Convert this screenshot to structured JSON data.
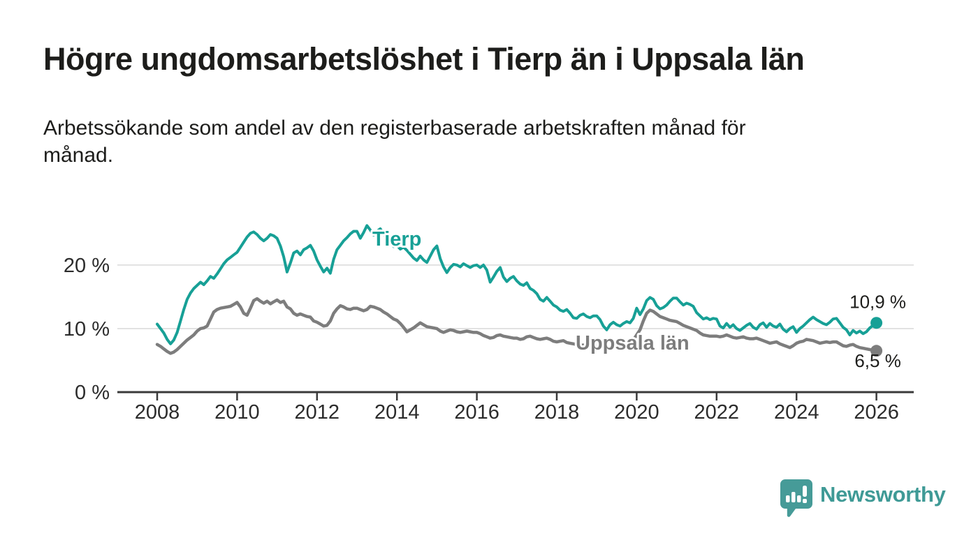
{
  "title": "Högre ungdomsarbetslöshet i Tierp än i Uppsala län",
  "subtitle_lines": [
    "Arbetssökande som andel av den registerbaserade arbetskraften månad för",
    "månad."
  ],
  "colors": {
    "tierp": "#17a096",
    "uppsala": "#7d7d7d",
    "axis": "#3a3a3a",
    "gridline": "#dcdcdc",
    "tick_label": "#2c2c2c",
    "value_label": "#1d1d1b",
    "logo": "#3f9a96",
    "background": "#ffffff"
  },
  "branding": {
    "logo_text": "Newsworthy",
    "logo_icon": "speech-bubble-bar-chart-icon"
  },
  "chart_data": {
    "type": "line",
    "x_start": "2008-01",
    "x_end": "2026-01",
    "x_interval": "monthly",
    "x_tick_years": [
      2008,
      2010,
      2012,
      2014,
      2016,
      2018,
      2020,
      2022,
      2024,
      2026
    ],
    "y_ticks": [
      {
        "value": 0,
        "label": "0 %"
      },
      {
        "value": 10,
        "label": "10 %"
      },
      {
        "value": 20,
        "label": "20 %"
      }
    ],
    "y_gridlines": [
      10,
      20
    ],
    "ylim": [
      0,
      28
    ],
    "grid": "horizontal",
    "legend_position": "inline-labels",
    "series": [
      {
        "name": "Tierp",
        "color": "#17a096",
        "end_label": "10,9 %",
        "end_value": 10.9,
        "values": [
          10.7,
          10.0,
          9.3,
          8.3,
          7.6,
          8.2,
          9.4,
          11.2,
          13.0,
          14.6,
          15.6,
          16.3,
          16.8,
          17.3,
          16.9,
          17.5,
          18.2,
          17.9,
          18.6,
          19.4,
          20.2,
          20.8,
          21.2,
          21.6,
          22.0,
          22.8,
          23.6,
          24.4,
          25.0,
          25.2,
          24.8,
          24.2,
          23.8,
          24.2,
          24.8,
          24.6,
          24.2,
          23.0,
          21.3,
          18.9,
          20.3,
          21.9,
          22.2,
          21.6,
          22.4,
          22.7,
          23.1,
          22.2,
          20.8,
          19.8,
          18.9,
          19.5,
          18.7,
          20.9,
          22.4,
          23.1,
          23.8,
          24.3,
          24.9,
          25.3,
          25.3,
          24.2,
          25.1,
          26.2,
          25.5,
          24.7,
          25.3,
          25.7,
          24.9,
          24.1,
          23.5,
          22.9,
          23.1,
          22.5,
          22.8,
          22.3,
          21.7,
          21.1,
          20.7,
          21.4,
          20.8,
          20.4,
          21.4,
          22.4,
          23.0,
          21.0,
          19.7,
          18.8,
          19.6,
          20.1,
          20.0,
          19.7,
          20.2,
          19.9,
          19.6,
          19.9,
          20.0,
          19.6,
          20.0,
          19.2,
          17.3,
          18.1,
          19.0,
          19.6,
          18.1,
          17.4,
          17.9,
          18.2,
          17.5,
          17.0,
          16.8,
          17.2,
          16.3,
          16.0,
          15.5,
          14.6,
          14.3,
          14.9,
          14.3,
          13.7,
          13.4,
          12.9,
          12.7,
          13.0,
          12.4,
          11.7,
          11.6,
          12.1,
          12.3,
          11.9,
          11.7,
          12.0,
          12.0,
          11.4,
          10.4,
          9.8,
          10.6,
          11.0,
          10.6,
          10.4,
          10.8,
          11.1,
          10.9,
          11.6,
          13.2,
          12.2,
          13.1,
          14.4,
          14.9,
          14.6,
          13.6,
          13.1,
          13.3,
          13.7,
          14.3,
          14.8,
          14.8,
          14.2,
          13.7,
          14.0,
          13.8,
          13.5,
          12.5,
          12.0,
          11.5,
          11.7,
          11.4,
          11.6,
          11.5,
          10.4,
          10.1,
          10.8,
          10.2,
          10.6,
          10.0,
          9.7,
          10.1,
          10.5,
          10.8,
          10.2,
          9.9,
          10.6,
          10.9,
          10.2,
          10.8,
          10.4,
          10.2,
          10.7,
          9.9,
          9.5,
          10.0,
          10.3,
          9.4,
          10.0,
          10.4,
          10.9,
          11.4,
          11.8,
          11.4,
          11.1,
          10.8,
          10.6,
          11.0,
          11.5,
          11.6,
          10.9,
          10.2,
          9.8,
          9.0,
          9.7,
          9.3,
          9.6,
          9.2,
          9.5,
          10.1,
          10.5,
          10.9
        ]
      },
      {
        "name": "Uppsala län",
        "color": "#7d7d7d",
        "end_label": "6,5 %",
        "end_value": 6.5,
        "values": [
          7.5,
          7.2,
          6.8,
          6.4,
          6.1,
          6.3,
          6.7,
          7.2,
          7.7,
          8.2,
          8.6,
          9.0,
          9.6,
          10.0,
          10.1,
          10.4,
          11.5,
          12.6,
          13.0,
          13.2,
          13.3,
          13.4,
          13.5,
          13.8,
          14.1,
          13.4,
          12.4,
          12.1,
          13.2,
          14.4,
          14.7,
          14.3,
          14.0,
          14.3,
          13.9,
          14.2,
          14.5,
          14.1,
          14.3,
          13.4,
          13.1,
          12.4,
          12.1,
          12.3,
          12.1,
          11.9,
          11.8,
          11.2,
          11.0,
          10.7,
          10.4,
          10.5,
          11.2,
          12.4,
          13.1,
          13.6,
          13.4,
          13.1,
          13.0,
          13.2,
          13.2,
          13.0,
          12.8,
          13.0,
          13.5,
          13.4,
          13.2,
          13.0,
          12.6,
          12.3,
          11.9,
          11.5,
          11.3,
          10.8,
          10.2,
          9.5,
          9.8,
          10.1,
          10.5,
          10.9,
          10.6,
          10.3,
          10.2,
          10.1,
          10.0,
          9.6,
          9.4,
          9.6,
          9.8,
          9.7,
          9.5,
          9.4,
          9.5,
          9.6,
          9.5,
          9.4,
          9.4,
          9.2,
          8.9,
          8.7,
          8.5,
          8.6,
          8.9,
          9.0,
          8.8,
          8.7,
          8.6,
          8.5,
          8.5,
          8.3,
          8.4,
          8.7,
          8.8,
          8.6,
          8.4,
          8.3,
          8.4,
          8.5,
          8.3,
          8.0,
          7.9,
          8.0,
          8.1,
          7.8,
          7.7,
          7.6,
          7.5,
          7.4,
          7.4,
          7.3,
          7.3,
          7.2,
          7.2,
          7.1,
          7.0,
          7.0,
          7.1,
          7.1,
          7.2,
          7.2,
          7.3,
          7.4,
          7.6,
          8.2,
          9.0,
          9.8,
          11.2,
          12.4,
          12.9,
          12.7,
          12.3,
          11.9,
          11.7,
          11.5,
          11.3,
          11.2,
          11.1,
          10.8,
          10.5,
          10.3,
          10.1,
          9.9,
          9.7,
          9.3,
          9.0,
          8.9,
          8.8,
          8.8,
          8.8,
          8.7,
          8.8,
          9.0,
          8.8,
          8.6,
          8.5,
          8.6,
          8.7,
          8.5,
          8.4,
          8.4,
          8.5,
          8.3,
          8.1,
          7.9,
          7.7,
          7.8,
          7.9,
          7.6,
          7.4,
          7.2,
          7.0,
          7.3,
          7.7,
          7.9,
          8.0,
          8.3,
          8.2,
          8.1,
          7.9,
          7.7,
          7.8,
          7.9,
          7.8,
          7.9,
          7.9,
          7.6,
          7.3,
          7.2,
          7.4,
          7.5,
          7.2,
          7.0,
          6.9,
          6.8,
          6.7,
          6.6,
          6.5
        ]
      }
    ]
  }
}
